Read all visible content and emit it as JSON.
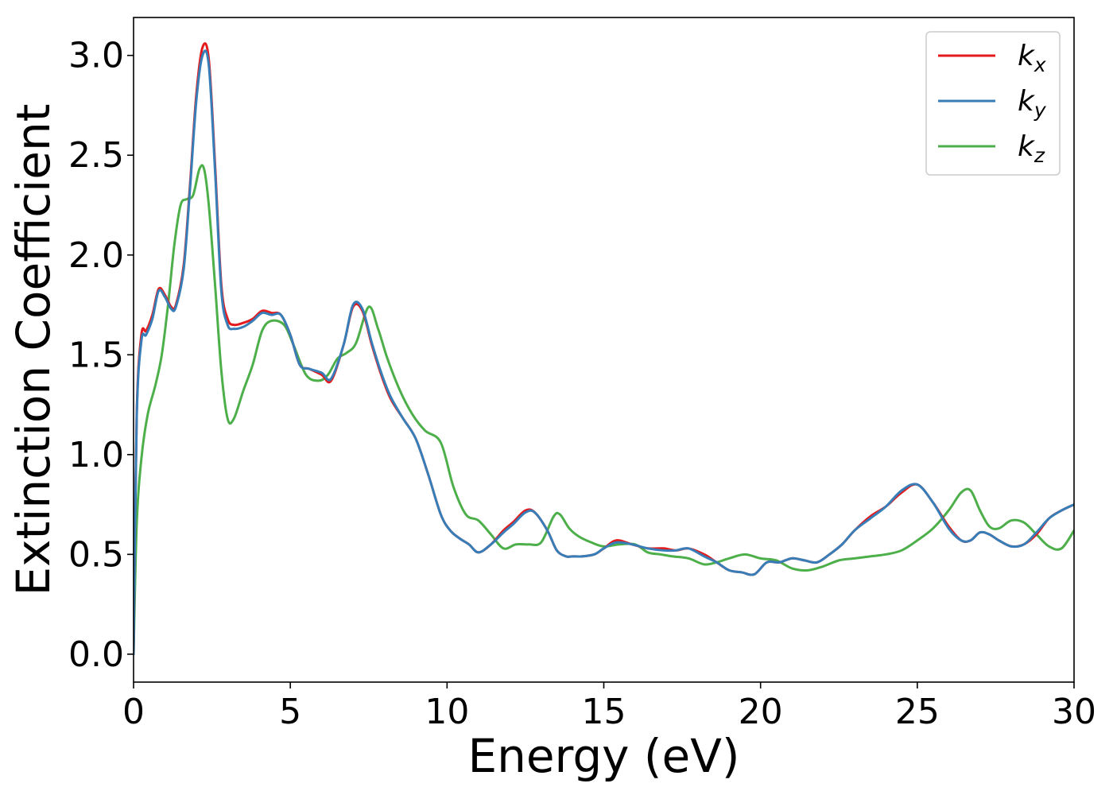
{
  "chart_data": {
    "type": "line",
    "title": "",
    "xlabel": "Energy (eV)",
    "ylabel": "Extinction Coefficient",
    "xlim": [
      0,
      30
    ],
    "ylim": [
      -0.14,
      3.19
    ],
    "xticks": [
      0,
      5,
      10,
      15,
      20,
      25,
      30
    ],
    "yticks": [
      0.0,
      0.5,
      1.0,
      1.5,
      2.0,
      2.5,
      3.0
    ],
    "xtick_labels": [
      "0",
      "5",
      "10",
      "15",
      "20",
      "25",
      "30"
    ],
    "ytick_labels": [
      "0.0",
      "0.5",
      "1.0",
      "1.5",
      "2.0",
      "2.5",
      "3.0"
    ],
    "grid": false,
    "legend_position": "top-right",
    "series": [
      {
        "name": "k_x",
        "label_base": "k",
        "label_sub": "x",
        "color": "#e41a1c",
        "x": [
          0,
          0.1,
          0.25,
          0.4,
          0.6,
          0.8,
          1.0,
          1.2,
          1.35,
          1.6,
          1.8,
          2.0,
          2.2,
          2.4,
          2.6,
          2.8,
          3.0,
          3.2,
          3.5,
          3.8,
          4.1,
          4.4,
          4.7,
          5.0,
          5.3,
          5.6,
          6.0,
          6.3,
          6.7,
          7.0,
          7.3,
          7.6,
          7.9,
          8.2,
          8.6,
          9.0,
          9.4,
          9.8,
          10.1,
          10.4,
          10.7,
          11.0,
          11.4,
          11.8,
          12.1,
          12.5,
          12.8,
          13.2,
          13.5,
          13.8,
          14.0,
          14.3,
          14.7,
          15.0,
          15.4,
          15.9,
          16.4,
          16.9,
          17.3,
          17.7,
          18.2,
          18.6,
          19.0,
          19.4,
          19.8,
          20.2,
          20.6,
          21.0,
          21.4,
          21.8,
          22.2,
          22.6,
          23.0,
          23.5,
          24.0,
          24.5,
          25.0,
          25.5,
          26.0,
          26.4,
          26.7,
          27.0,
          27.3,
          27.6,
          28.0,
          28.4,
          28.8,
          29.2,
          29.6,
          30.0
        ],
        "y": [
          0.0,
          1.2,
          1.6,
          1.62,
          1.7,
          1.83,
          1.8,
          1.74,
          1.75,
          1.95,
          2.35,
          2.8,
          3.04,
          2.98,
          2.45,
          1.85,
          1.68,
          1.65,
          1.66,
          1.68,
          1.72,
          1.71,
          1.7,
          1.6,
          1.45,
          1.43,
          1.4,
          1.37,
          1.55,
          1.74,
          1.72,
          1.55,
          1.4,
          1.28,
          1.18,
          1.08,
          0.9,
          0.7,
          0.62,
          0.58,
          0.55,
          0.51,
          0.55,
          0.62,
          0.66,
          0.72,
          0.71,
          0.62,
          0.52,
          0.49,
          0.49,
          0.49,
          0.5,
          0.53,
          0.57,
          0.55,
          0.53,
          0.53,
          0.52,
          0.53,
          0.5,
          0.46,
          0.42,
          0.41,
          0.4,
          0.46,
          0.46,
          0.48,
          0.47,
          0.46,
          0.5,
          0.55,
          0.62,
          0.69,
          0.74,
          0.81,
          0.85,
          0.76,
          0.64,
          0.57,
          0.57,
          0.61,
          0.6,
          0.57,
          0.54,
          0.55,
          0.6,
          0.68,
          0.72,
          0.75
        ]
      },
      {
        "name": "k_y",
        "label_base": "k",
        "label_sub": "y",
        "color": "#377eb8",
        "x": [
          0,
          0.1,
          0.25,
          0.4,
          0.6,
          0.8,
          1.0,
          1.2,
          1.35,
          1.6,
          1.8,
          2.0,
          2.2,
          2.4,
          2.6,
          2.8,
          3.0,
          3.2,
          3.5,
          3.8,
          4.1,
          4.4,
          4.7,
          5.0,
          5.3,
          5.6,
          6.0,
          6.3,
          6.7,
          7.0,
          7.3,
          7.6,
          7.9,
          8.2,
          8.6,
          9.0,
          9.4,
          9.8,
          10.1,
          10.4,
          10.7,
          11.0,
          11.4,
          11.8,
          12.1,
          12.5,
          12.8,
          13.2,
          13.5,
          13.8,
          14.0,
          14.3,
          14.7,
          15.0,
          15.4,
          15.9,
          16.4,
          16.9,
          17.3,
          17.7,
          18.2,
          18.6,
          19.0,
          19.4,
          19.8,
          20.2,
          20.6,
          21.0,
          21.4,
          21.8,
          22.2,
          22.6,
          23.0,
          23.5,
          24.0,
          24.5,
          25.0,
          25.5,
          26.0,
          26.4,
          26.7,
          27.0,
          27.3,
          27.6,
          28.0,
          28.4,
          28.8,
          29.2,
          29.6,
          30.0
        ],
        "y": [
          0.0,
          1.18,
          1.57,
          1.6,
          1.68,
          1.82,
          1.79,
          1.73,
          1.74,
          1.93,
          2.33,
          2.77,
          3.0,
          2.95,
          2.42,
          1.82,
          1.65,
          1.63,
          1.64,
          1.67,
          1.71,
          1.7,
          1.7,
          1.6,
          1.45,
          1.43,
          1.41,
          1.38,
          1.55,
          1.75,
          1.73,
          1.56,
          1.41,
          1.29,
          1.18,
          1.08,
          0.9,
          0.7,
          0.62,
          0.58,
          0.55,
          0.51,
          0.55,
          0.61,
          0.65,
          0.71,
          0.71,
          0.62,
          0.52,
          0.49,
          0.49,
          0.49,
          0.5,
          0.53,
          0.56,
          0.55,
          0.53,
          0.52,
          0.52,
          0.53,
          0.49,
          0.46,
          0.42,
          0.41,
          0.4,
          0.46,
          0.46,
          0.48,
          0.47,
          0.46,
          0.5,
          0.55,
          0.62,
          0.68,
          0.74,
          0.82,
          0.85,
          0.76,
          0.63,
          0.57,
          0.57,
          0.61,
          0.6,
          0.57,
          0.54,
          0.55,
          0.61,
          0.68,
          0.72,
          0.75
        ]
      },
      {
        "name": "k_z",
        "label_base": "k",
        "label_sub": "z",
        "color": "#4daf4a",
        "x": [
          0,
          0.1,
          0.25,
          0.45,
          0.7,
          0.9,
          1.1,
          1.3,
          1.5,
          1.7,
          1.9,
          2.1,
          2.25,
          2.4,
          2.6,
          2.8,
          3.0,
          3.2,
          3.5,
          3.8,
          4.1,
          4.4,
          4.8,
          5.1,
          5.5,
          5.9,
          6.2,
          6.5,
          6.8,
          7.1,
          7.5,
          7.8,
          8.1,
          8.5,
          8.9,
          9.3,
          9.8,
          10.2,
          10.6,
          11.0,
          11.4,
          11.8,
          12.2,
          12.6,
          13.0,
          13.4,
          13.6,
          13.9,
          14.2,
          14.6,
          15.0,
          15.5,
          16.0,
          16.4,
          16.8,
          17.2,
          17.7,
          18.2,
          18.6,
          19.0,
          19.5,
          20.0,
          20.5,
          21.0,
          21.5,
          22.0,
          22.5,
          23.0,
          23.5,
          24.0,
          24.5,
          25.0,
          25.5,
          26.0,
          26.4,
          26.7,
          27.0,
          27.3,
          27.6,
          28.0,
          28.4,
          28.8,
          29.2,
          29.6,
          30.0
        ],
        "y": [
          0.0,
          0.65,
          0.98,
          1.2,
          1.35,
          1.5,
          1.75,
          2.05,
          2.25,
          2.28,
          2.3,
          2.43,
          2.43,
          2.25,
          1.85,
          1.42,
          1.18,
          1.18,
          1.32,
          1.45,
          1.62,
          1.67,
          1.65,
          1.55,
          1.4,
          1.37,
          1.4,
          1.48,
          1.51,
          1.56,
          1.74,
          1.63,
          1.48,
          1.32,
          1.2,
          1.12,
          1.06,
          0.84,
          0.7,
          0.67,
          0.6,
          0.53,
          0.55,
          0.55,
          0.56,
          0.69,
          0.7,
          0.63,
          0.59,
          0.56,
          0.54,
          0.55,
          0.55,
          0.51,
          0.5,
          0.49,
          0.48,
          0.45,
          0.46,
          0.48,
          0.5,
          0.48,
          0.47,
          0.43,
          0.42,
          0.44,
          0.47,
          0.48,
          0.49,
          0.5,
          0.52,
          0.57,
          0.63,
          0.72,
          0.81,
          0.82,
          0.72,
          0.64,
          0.63,
          0.67,
          0.66,
          0.6,
          0.54,
          0.53,
          0.62
        ]
      }
    ]
  }
}
